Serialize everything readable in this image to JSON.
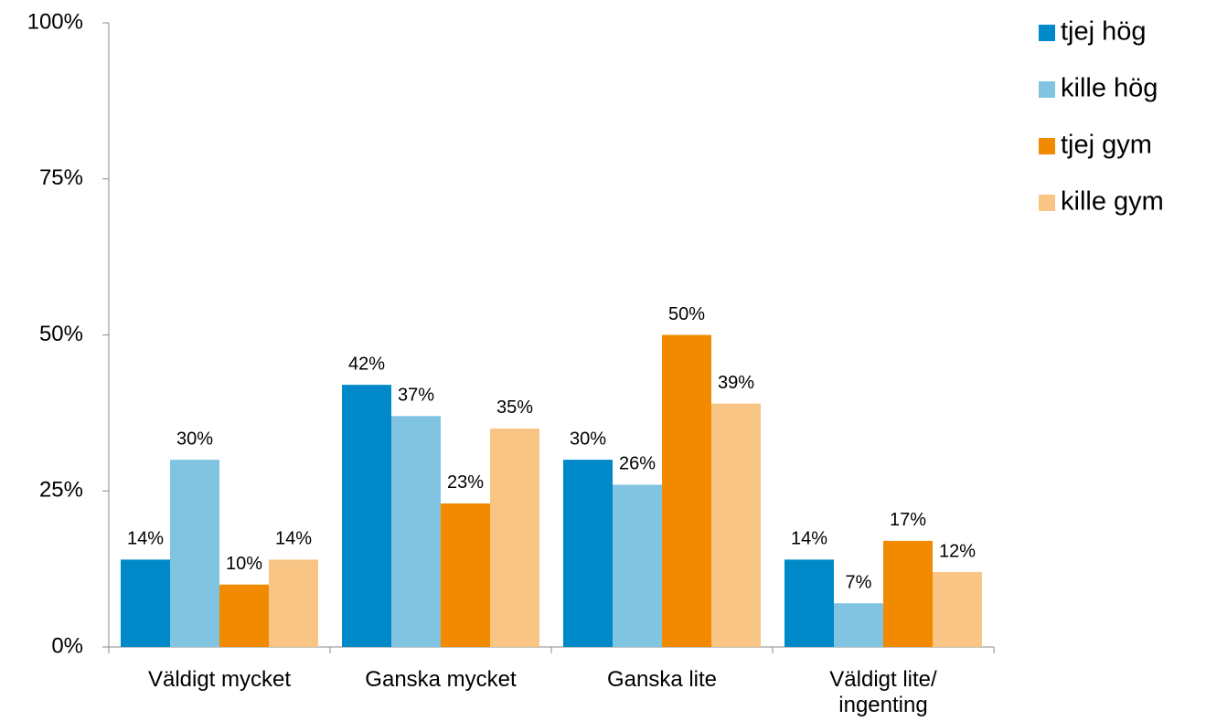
{
  "chart_data": {
    "type": "bar",
    "categories": [
      "Väldigt mycket",
      "Ganska mycket",
      "Ganska lite",
      "Väldigt lite/ ingenting"
    ],
    "series": [
      {
        "name": "tjej hög",
        "color": "#0089c8",
        "values": [
          14,
          42,
          30,
          14
        ],
        "value_labels": [
          "14%",
          "42%",
          "30%",
          "14%"
        ]
      },
      {
        "name": "kille hög",
        "color": "#80c4e2",
        "values": [
          30,
          37,
          26,
          7
        ],
        "value_labels": [
          "30%",
          "37%",
          "26%",
          "7%"
        ]
      },
      {
        "name": "tjej gym",
        "color": "#f28a00",
        "values": [
          10,
          23,
          50,
          17
        ],
        "value_labels": [
          "10%",
          "23%",
          "50%",
          "17%"
        ]
      },
      {
        "name": "kille gym",
        "color": "#f8c584",
        "values": [
          14,
          35,
          39,
          12
        ],
        "value_labels": [
          "14%",
          "35%",
          "39%",
          "12%"
        ]
      }
    ],
    "ylim": [
      0,
      100
    ],
    "yticks": [
      {
        "value": 0,
        "label": "0%"
      },
      {
        "value": 25,
        "label": "25%"
      },
      {
        "value": 50,
        "label": "50%"
      },
      {
        "value": 75,
        "label": "75%"
      },
      {
        "value": 100,
        "label": "100%"
      }
    ],
    "legend": "right"
  }
}
